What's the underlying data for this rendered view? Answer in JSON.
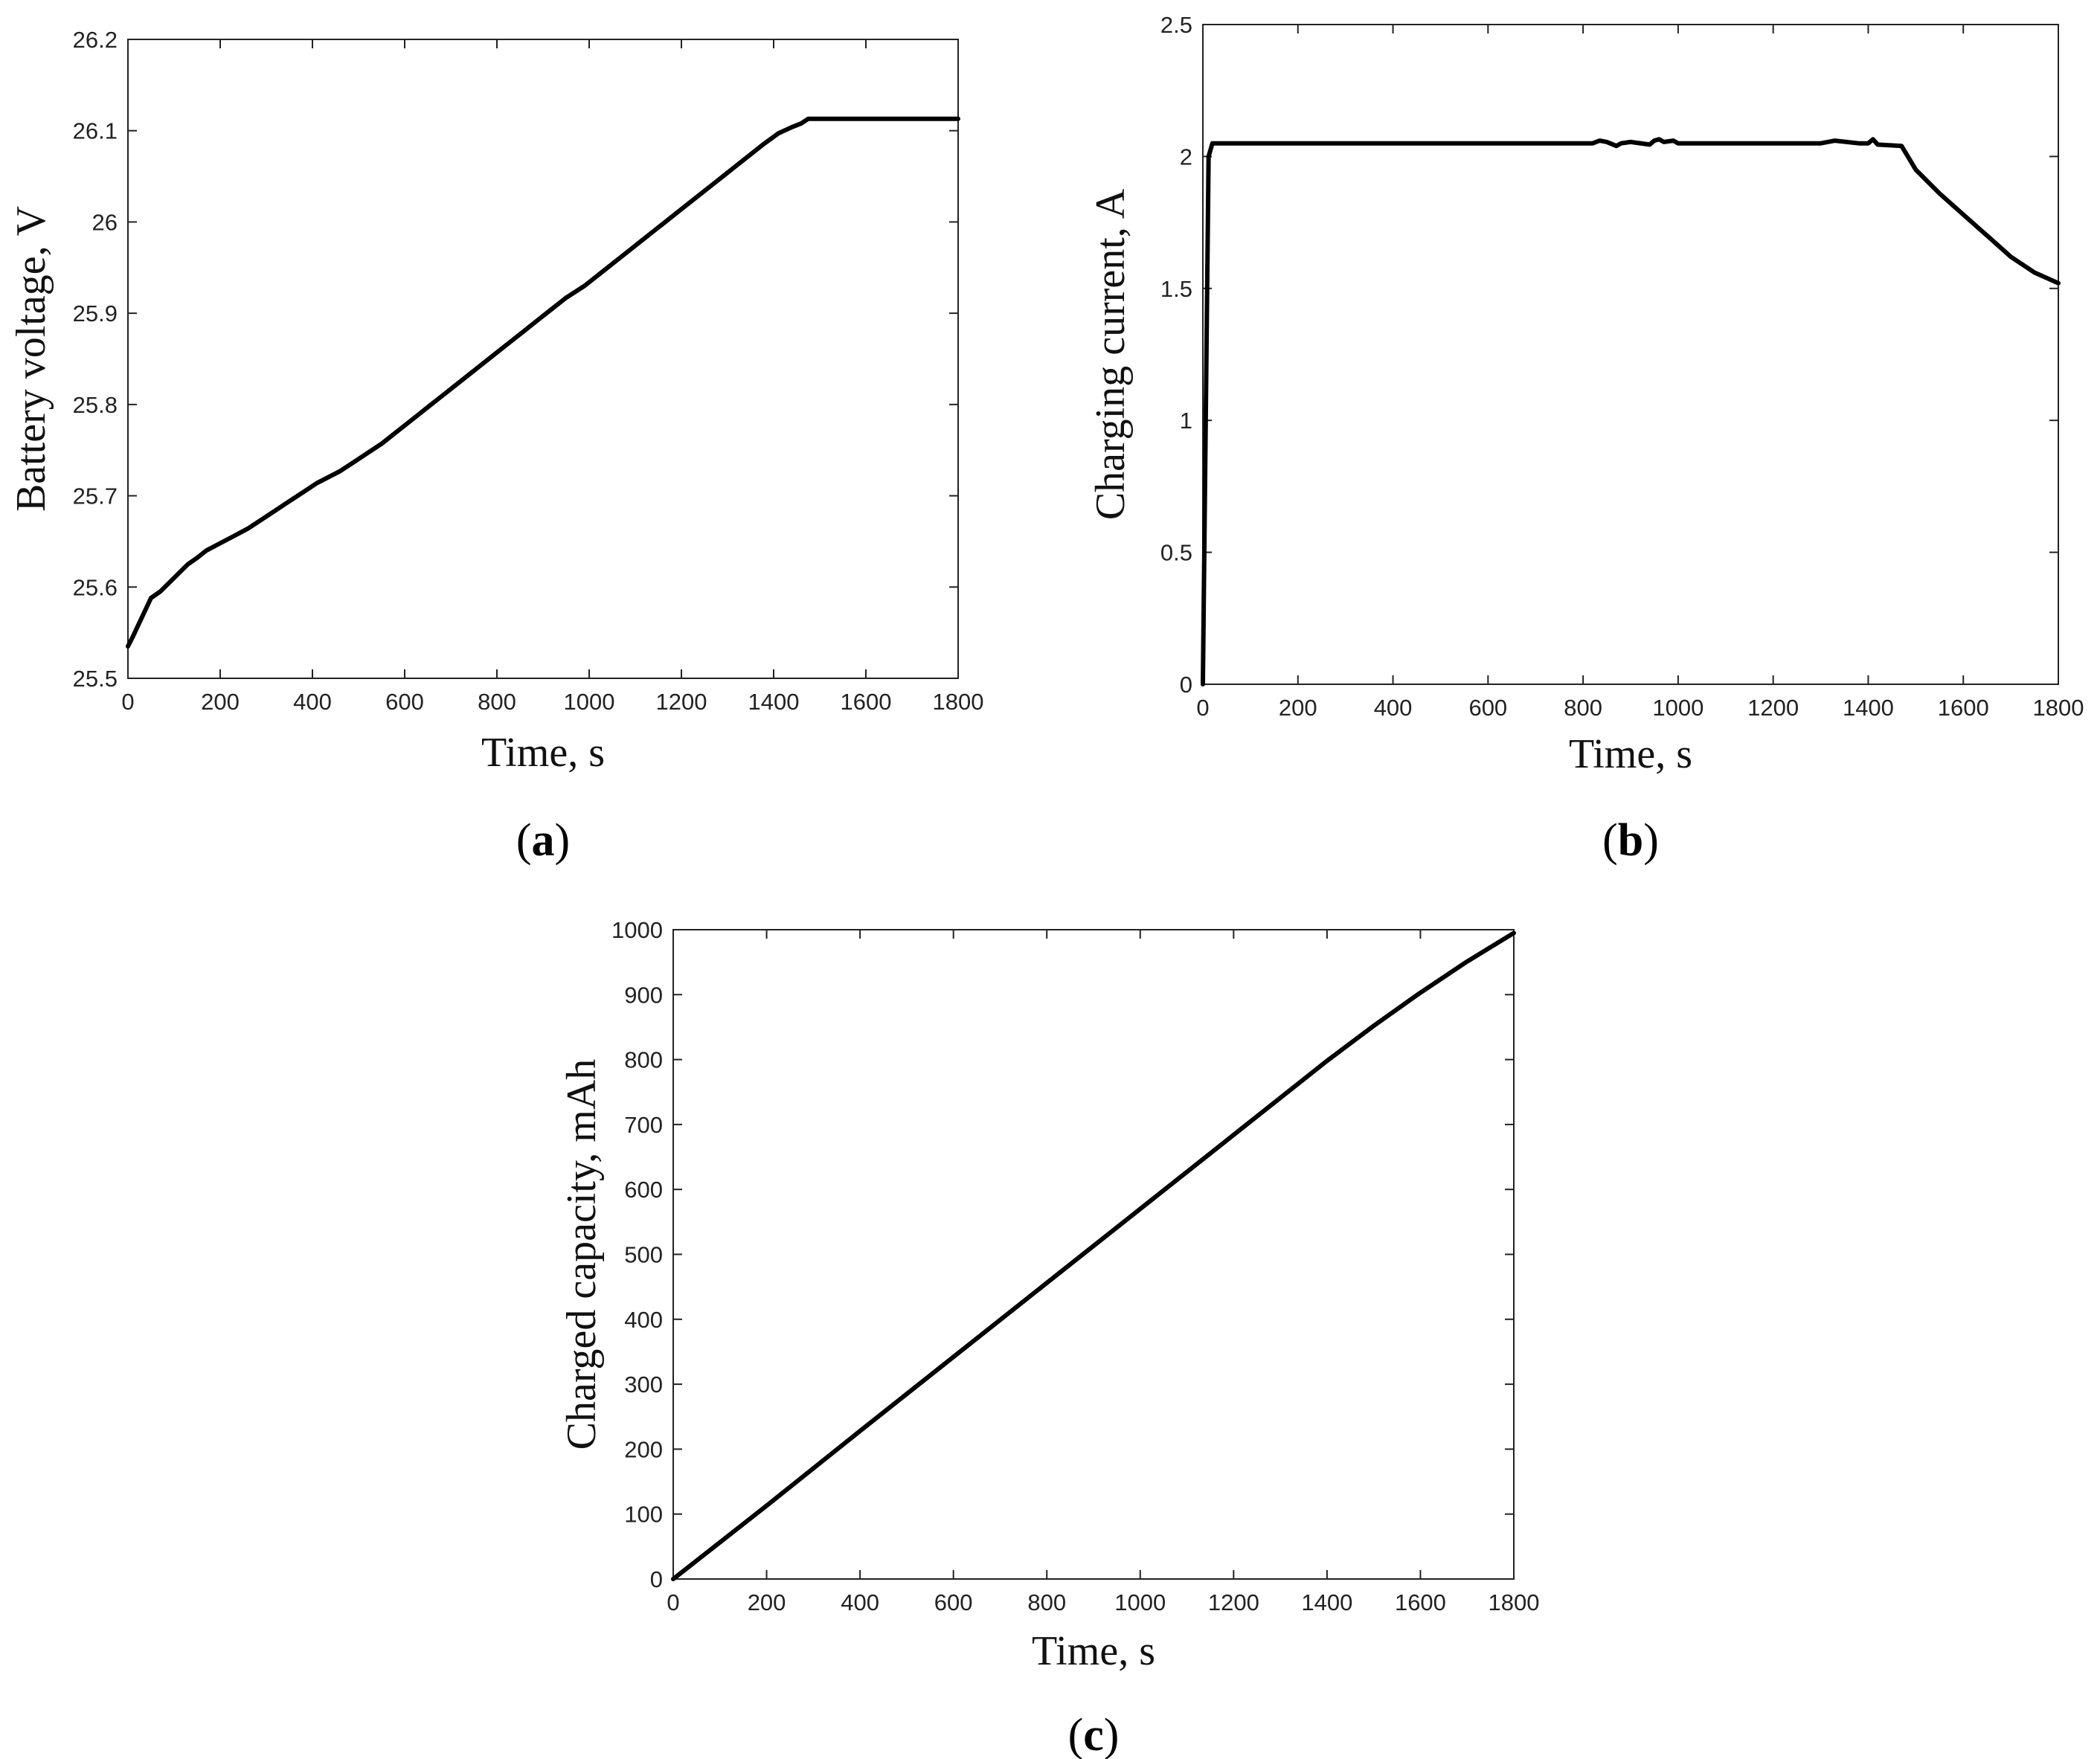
{
  "chart_data": [
    {
      "panel_label": "a",
      "type": "line",
      "xlabel": "Time, s",
      "ylabel": "Battery voltage, V",
      "xlim": [
        0,
        1800
      ],
      "ylim": [
        25.5,
        26.2
      ],
      "xticks": [
        0,
        200,
        400,
        600,
        800,
        1000,
        1200,
        1400,
        1600,
        1800
      ],
      "yticks": [
        25.5,
        25.6,
        25.7,
        25.8,
        25.9,
        26,
        26.1,
        26.2
      ],
      "ytick_labels": [
        "25.5",
        "25.6",
        "25.7",
        "25.8",
        "25.9",
        "26",
        "26.1",
        "26.2"
      ],
      "grid": false,
      "series": [
        {
          "x": [
            0,
            10,
            50,
            70,
            90,
            110,
            130,
            150,
            170,
            200,
            230,
            260,
            290,
            320,
            350,
            380,
            410,
            460,
            490,
            520,
            550,
            580,
            620,
            650,
            680,
            710,
            740,
            770,
            800,
            830,
            860,
            890,
            920,
            950,
            990,
            1020,
            1050,
            1080,
            1110,
            1140,
            1170,
            1200,
            1230,
            1260,
            1290,
            1320,
            1350,
            1380,
            1410,
            1440,
            1460,
            1475,
            1800
          ],
          "y": [
            25.535,
            25.545,
            25.588,
            25.595,
            25.605,
            25.615,
            25.625,
            25.632,
            25.64,
            25.648,
            25.656,
            25.664,
            25.674,
            25.684,
            25.694,
            25.704,
            25.714,
            25.727,
            25.737,
            25.747,
            25.757,
            25.769,
            25.785,
            25.797,
            25.809,
            25.821,
            25.833,
            25.845,
            25.857,
            25.869,
            25.881,
            25.893,
            25.905,
            25.917,
            25.93,
            25.942,
            25.954,
            25.966,
            25.978,
            25.99,
            26.002,
            26.014,
            26.026,
            26.038,
            26.05,
            26.062,
            26.074,
            26.086,
            26.097,
            26.104,
            26.108,
            26.113,
            26.113
          ]
        }
      ]
    },
    {
      "panel_label": "b",
      "type": "line",
      "xlabel": "Time, s",
      "ylabel": "Charging current, A",
      "xlim": [
        0,
        1800
      ],
      "ylim": [
        0,
        2.5
      ],
      "xticks": [
        0,
        200,
        400,
        600,
        800,
        1000,
        1200,
        1400,
        1600,
        1800
      ],
      "yticks": [
        0,
        0.5,
        1,
        1.5,
        2,
        2.5
      ],
      "ytick_labels": [
        "0",
        "0.5",
        "1",
        "1.5",
        "2",
        "2.5"
      ],
      "grid": false,
      "series": [
        {
          "x": [
            0,
            12,
            20,
            300,
            600,
            800,
            820,
            835,
            850,
            870,
            880,
            900,
            940,
            950,
            960,
            970,
            990,
            1000,
            1300,
            1330,
            1380,
            1400,
            1410,
            1420,
            1470,
            1500,
            1550,
            1600,
            1650,
            1700,
            1750,
            1800
          ],
          "y": [
            0,
            2.0,
            2.05,
            2.05,
            2.05,
            2.05,
            2.05,
            2.06,
            2.055,
            2.04,
            2.05,
            2.055,
            2.045,
            2.06,
            2.065,
            2.055,
            2.06,
            2.05,
            2.05,
            2.06,
            2.05,
            2.05,
            2.065,
            2.045,
            2.04,
            1.95,
            1.86,
            1.78,
            1.7,
            1.62,
            1.56,
            1.52
          ]
        }
      ]
    },
    {
      "panel_label": "c",
      "type": "line",
      "xlabel": "Time, s",
      "ylabel": "Charged capacity, mAh",
      "xlim": [
        0,
        1800
      ],
      "ylim": [
        0,
        1000
      ],
      "xticks": [
        0,
        200,
        400,
        600,
        800,
        1000,
        1200,
        1400,
        1600,
        1800
      ],
      "yticks": [
        0,
        100,
        200,
        300,
        400,
        500,
        600,
        700,
        800,
        900,
        1000
      ],
      "ytick_labels": [
        "0",
        "100",
        "200",
        "300",
        "400",
        "500",
        "600",
        "700",
        "800",
        "900",
        "1000"
      ],
      "grid": false,
      "series": [
        {
          "x": [
            0,
            200,
            400,
            600,
            800,
            1000,
            1200,
            1400,
            1500,
            1600,
            1700,
            1800
          ],
          "y": [
            0,
            113,
            228,
            342,
            456,
            570,
            684,
            798,
            852,
            903,
            951,
            995
          ]
        }
      ]
    }
  ]
}
